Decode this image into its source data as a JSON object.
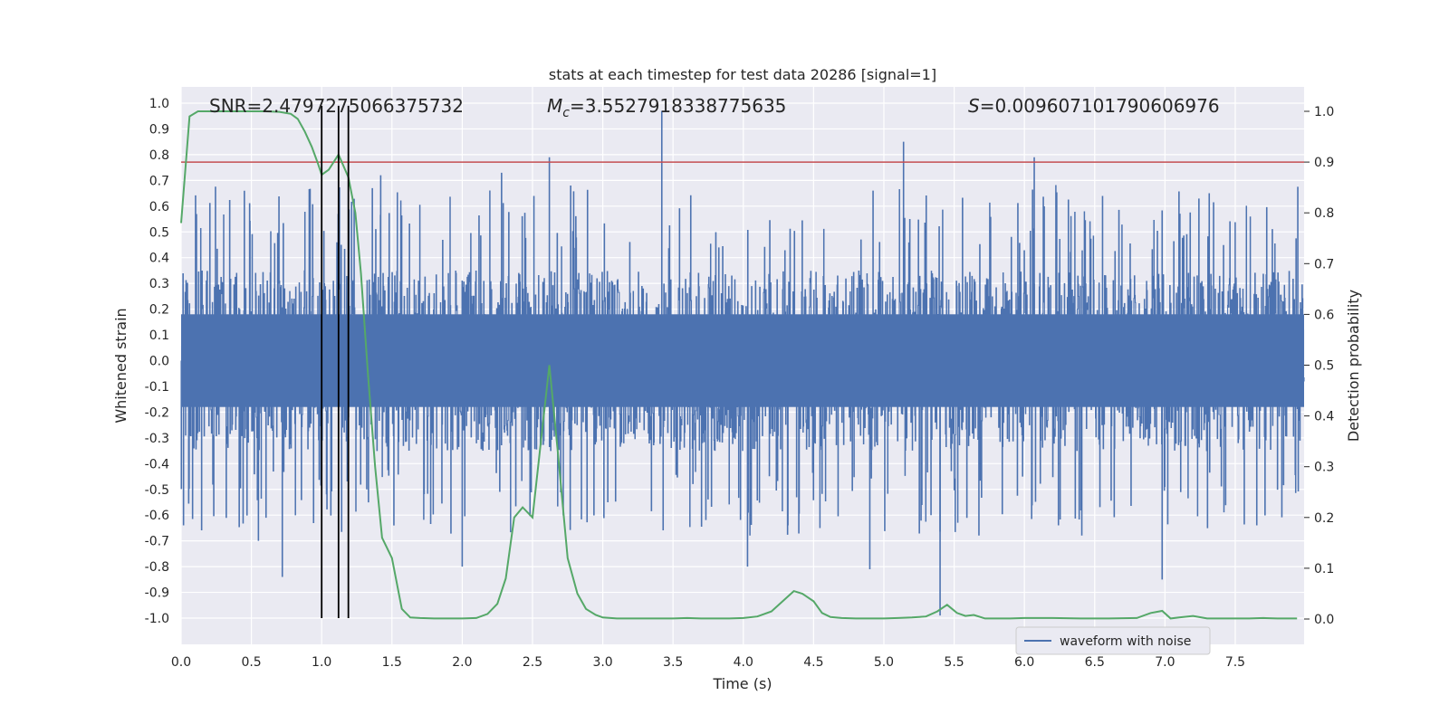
{
  "chart_data": {
    "type": "line",
    "title": "stats at each timestep for test data 20286 [signal=1]",
    "xlabel": "Time (s)",
    "ylabel_left": "Whitened strain",
    "ylabel_right": "Detection probability",
    "xlim": [
      0.0,
      7.99
    ],
    "ylim_left": [
      -1.08,
      1.06
    ],
    "ylim_right": [
      -0.05,
      1.05
    ],
    "x_ticks": [
      "0.0",
      "0.5",
      "1.0",
      "1.5",
      "2.0",
      "2.5",
      "3.0",
      "3.5",
      "4.0",
      "4.5",
      "5.0",
      "5.5",
      "6.0",
      "6.5",
      "7.0",
      "7.5"
    ],
    "y_left_ticks": [
      "1.0",
      "0.9",
      "0.8",
      "0.7",
      "0.6",
      "0.5",
      "0.4",
      "0.3",
      "0.2",
      "0.1",
      "0.0",
      "-0.1",
      "-0.2",
      "-0.3",
      "-0.4",
      "-0.5",
      "-0.6",
      "-0.7",
      "-0.8",
      "-0.9",
      "-1.0"
    ],
    "y_right_ticks": [
      "1.0",
      "0.9",
      "0.8",
      "0.7",
      "0.6",
      "0.5",
      "0.4",
      "0.3",
      "0.2",
      "0.1",
      "0.0"
    ],
    "grid": true,
    "legend": {
      "position": "bottom-right",
      "entries": [
        "waveform with noise"
      ]
    },
    "annotations": {
      "snr": "SNR=2.4797275066375732",
      "mc_symbol": "M",
      "mc_sub": "c",
      "mc_value": "=3.5527918338775635",
      "s_symbol": "S",
      "s_value": "=0.009607101790606976"
    },
    "threshold": 0.9,
    "vertical_markers": [
      1.0,
      1.12,
      1.19
    ],
    "series": [
      {
        "name": "waveform with noise",
        "color": "#4c72b0",
        "axis": "left",
        "kind": "noise",
        "envelope_upper": 0.35,
        "envelope_lower": -0.35,
        "peaks_upper": [
          [
            0.45,
            0.66
          ],
          [
            1.42,
            0.72
          ],
          [
            2.28,
            0.73
          ],
          [
            2.62,
            0.79
          ],
          [
            3.42,
            0.97
          ],
          [
            5.14,
            0.85
          ],
          [
            6.07,
            0.79
          ]
        ],
        "peaks_lower": [
          [
            0.55,
            -0.7
          ],
          [
            0.72,
            -0.84
          ],
          [
            2.0,
            -0.8
          ],
          [
            4.03,
            -0.8
          ],
          [
            4.9,
            -0.81
          ],
          [
            5.4,
            -0.99
          ],
          [
            6.98,
            -0.85
          ]
        ]
      },
      {
        "name": "detection probability",
        "color": "#55a868",
        "axis": "right",
        "x": [
          0.0,
          0.06,
          0.12,
          0.2,
          0.3,
          0.4,
          0.5,
          0.6,
          0.7,
          0.78,
          0.83,
          0.88,
          0.93,
          0.97,
          1.0,
          1.05,
          1.12,
          1.19,
          1.24,
          1.28,
          1.33,
          1.38,
          1.43,
          1.5,
          1.57,
          1.63,
          1.7,
          1.8,
          1.9,
          2.0,
          2.1,
          2.18,
          2.25,
          2.31,
          2.37,
          2.43,
          2.5,
          2.56,
          2.62,
          2.68,
          2.75,
          2.82,
          2.88,
          2.95,
          3.0,
          3.1,
          3.3,
          3.5,
          3.6,
          3.7,
          3.8,
          3.9,
          4.0,
          4.1,
          4.2,
          4.28,
          4.36,
          4.42,
          4.5,
          4.56,
          4.62,
          4.7,
          4.8,
          4.9,
          5.0,
          5.1,
          5.2,
          5.3,
          5.38,
          5.45,
          5.52,
          5.58,
          5.64,
          5.72,
          5.8,
          5.9,
          6.0,
          6.2,
          6.4,
          6.6,
          6.8,
          6.9,
          6.98,
          7.04,
          7.1,
          7.2,
          7.3,
          7.4,
          7.5,
          7.6,
          7.7,
          7.8,
          7.94
        ],
        "y": [
          0.78,
          0.99,
          1.0,
          1.0,
          1.0,
          1.0,
          1.0,
          1.0,
          0.999,
          0.995,
          0.985,
          0.96,
          0.93,
          0.9,
          0.875,
          0.885,
          0.915,
          0.87,
          0.8,
          0.68,
          0.48,
          0.3,
          0.16,
          0.12,
          0.02,
          0.003,
          0.002,
          0.001,
          0.001,
          0.001,
          0.002,
          0.01,
          0.03,
          0.08,
          0.2,
          0.22,
          0.2,
          0.35,
          0.5,
          0.33,
          0.12,
          0.05,
          0.02,
          0.008,
          0.003,
          0.001,
          0.001,
          0.001,
          0.002,
          0.001,
          0.001,
          0.001,
          0.002,
          0.005,
          0.015,
          0.035,
          0.055,
          0.05,
          0.035,
          0.012,
          0.004,
          0.002,
          0.001,
          0.001,
          0.001,
          0.002,
          0.003,
          0.005,
          0.015,
          0.028,
          0.012,
          0.006,
          0.008,
          0.001,
          0.001,
          0.001,
          0.002,
          0.002,
          0.001,
          0.001,
          0.002,
          0.012,
          0.016,
          0.001,
          0.003,
          0.006,
          0.001,
          0.001,
          0.001,
          0.001,
          0.002,
          0.001,
          0.001
        ]
      }
    ]
  }
}
